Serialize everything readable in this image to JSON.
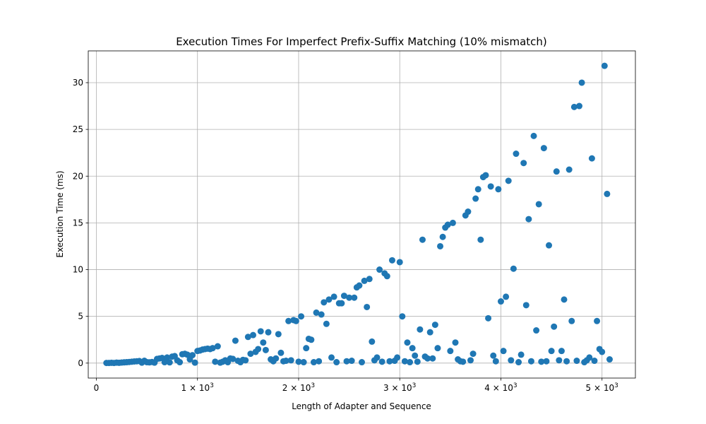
{
  "chart_data": {
    "type": "scatter",
    "title": "Execution Times For Imperfect Prefix-Suffix Matching (10% mismatch)",
    "xlabel": "Length of Adapter and Sequence",
    "ylabel": "Execution Time (ms)",
    "xlim": [
      -80,
      5330
    ],
    "ylim": [
      -1.6,
      33.4
    ],
    "grid": true,
    "marker_color": "#1f77b4",
    "x_ticks": [
      {
        "value": 0,
        "label": "0"
      },
      {
        "value": 1000,
        "label": "1 × 10",
        "exp": "3"
      },
      {
        "value": 2000,
        "label": "2 × 10",
        "exp": "3"
      },
      {
        "value": 3000,
        "label": "3 × 10",
        "exp": "3"
      },
      {
        "value": 4000,
        "label": "4 × 10",
        "exp": "3"
      },
      {
        "value": 5000,
        "label": "5 × 10",
        "exp": "3"
      }
    ],
    "y_ticks": [
      {
        "value": 0,
        "label": "0"
      },
      {
        "value": 5,
        "label": "5"
      },
      {
        "value": 10,
        "label": "10"
      },
      {
        "value": 15,
        "label": "15"
      },
      {
        "value": 20,
        "label": "20"
      },
      {
        "value": 25,
        "label": "25"
      },
      {
        "value": 30,
        "label": "30"
      }
    ],
    "points": [
      [
        100,
        0.02
      ],
      [
        125,
        0.02
      ],
      [
        150,
        0.03
      ],
      [
        175,
        0.02
      ],
      [
        200,
        0.05
      ],
      [
        225,
        0.03
      ],
      [
        250,
        0.06
      ],
      [
        275,
        0.08
      ],
      [
        300,
        0.1
      ],
      [
        325,
        0.12
      ],
      [
        350,
        0.15
      ],
      [
        375,
        0.18
      ],
      [
        400,
        0.2
      ],
      [
        425,
        0.22
      ],
      [
        450,
        0.05
      ],
      [
        475,
        0.25
      ],
      [
        500,
        0.1
      ],
      [
        525,
        0.08
      ],
      [
        550,
        0.12
      ],
      [
        575,
        0.05
      ],
      [
        600,
        0.45
      ],
      [
        625,
        0.5
      ],
      [
        650,
        0.55
      ],
      [
        675,
        0.1
      ],
      [
        700,
        0.6
      ],
      [
        725,
        0.08
      ],
      [
        750,
        0.7
      ],
      [
        775,
        0.75
      ],
      [
        800,
        0.3
      ],
      [
        825,
        0.1
      ],
      [
        850,
        0.95
      ],
      [
        875,
        1.0
      ],
      [
        900,
        0.9
      ],
      [
        925,
        0.4
      ],
      [
        950,
        0.85
      ],
      [
        975,
        0.05
      ],
      [
        1000,
        1.3
      ],
      [
        1025,
        1.35
      ],
      [
        1050,
        1.45
      ],
      [
        1075,
        1.5
      ],
      [
        1100,
        1.55
      ],
      [
        1125,
        1.5
      ],
      [
        1150,
        1.6
      ],
      [
        1175,
        0.15
      ],
      [
        1200,
        1.8
      ],
      [
        1225,
        0.05
      ],
      [
        1250,
        0.15
      ],
      [
        1275,
        0.3
      ],
      [
        1300,
        0.1
      ],
      [
        1325,
        0.5
      ],
      [
        1350,
        0.45
      ],
      [
        1375,
        2.4
      ],
      [
        1400,
        0.25
      ],
      [
        1425,
        0.1
      ],
      [
        1450,
        0.35
      ],
      [
        1475,
        0.3
      ],
      [
        1500,
        2.8
      ],
      [
        1525,
        1.0
      ],
      [
        1550,
        3.0
      ],
      [
        1575,
        1.2
      ],
      [
        1600,
        1.5
      ],
      [
        1625,
        3.4
      ],
      [
        1650,
        2.2
      ],
      [
        1675,
        1.4
      ],
      [
        1700,
        3.3
      ],
      [
        1725,
        0.4
      ],
      [
        1750,
        0.2
      ],
      [
        1775,
        0.5
      ],
      [
        1800,
        3.1
      ],
      [
        1825,
        1.1
      ],
      [
        1850,
        0.2
      ],
      [
        1875,
        0.25
      ],
      [
        1900,
        4.5
      ],
      [
        1925,
        0.3
      ],
      [
        1950,
        4.6
      ],
      [
        1975,
        4.5
      ],
      [
        2000,
        0.15
      ],
      [
        2025,
        5.0
      ],
      [
        2050,
        0.1
      ],
      [
        2075,
        1.6
      ],
      [
        2100,
        2.6
      ],
      [
        2125,
        2.5
      ],
      [
        2150,
        0.1
      ],
      [
        2175,
        5.4
      ],
      [
        2200,
        0.2
      ],
      [
        2225,
        5.2
      ],
      [
        2250,
        6.5
      ],
      [
        2275,
        4.2
      ],
      [
        2300,
        6.8
      ],
      [
        2325,
        0.6
      ],
      [
        2350,
        7.1
      ],
      [
        2375,
        0.1
      ],
      [
        2400,
        6.4
      ],
      [
        2425,
        6.4
      ],
      [
        2450,
        7.2
      ],
      [
        2475,
        0.2
      ],
      [
        2500,
        7.0
      ],
      [
        2525,
        0.25
      ],
      [
        2550,
        7.0
      ],
      [
        2575,
        8.1
      ],
      [
        2600,
        8.3
      ],
      [
        2625,
        0.1
      ],
      [
        2650,
        8.8
      ],
      [
        2675,
        6.0
      ],
      [
        2700,
        9.0
      ],
      [
        2725,
        2.3
      ],
      [
        2750,
        0.3
      ],
      [
        2775,
        0.6
      ],
      [
        2800,
        10.0
      ],
      [
        2825,
        0.15
      ],
      [
        2850,
        9.6
      ],
      [
        2875,
        9.3
      ],
      [
        2900,
        0.2
      ],
      [
        2925,
        11.0
      ],
      [
        2950,
        0.25
      ],
      [
        2975,
        0.6
      ],
      [
        3000,
        10.8
      ],
      [
        3025,
        5.0
      ],
      [
        3050,
        0.2
      ],
      [
        3075,
        2.2
      ],
      [
        3100,
        0.1
      ],
      [
        3125,
        1.6
      ],
      [
        3150,
        0.8
      ],
      [
        3175,
        0.15
      ],
      [
        3200,
        3.6
      ],
      [
        3225,
        13.2
      ],
      [
        3250,
        0.7
      ],
      [
        3275,
        0.5
      ],
      [
        3300,
        3.3
      ],
      [
        3325,
        0.5
      ],
      [
        3350,
        4.1
      ],
      [
        3375,
        1.6
      ],
      [
        3400,
        12.5
      ],
      [
        3425,
        13.5
      ],
      [
        3450,
        14.5
      ],
      [
        3475,
        14.8
      ],
      [
        3500,
        1.3
      ],
      [
        3525,
        15.0
      ],
      [
        3550,
        2.2
      ],
      [
        3575,
        0.4
      ],
      [
        3600,
        0.2
      ],
      [
        3625,
        0.15
      ],
      [
        3650,
        15.8
      ],
      [
        3675,
        16.2
      ],
      [
        3700,
        0.3
      ],
      [
        3725,
        1.0
      ],
      [
        3750,
        17.6
      ],
      [
        3775,
        18.6
      ],
      [
        3800,
        13.2
      ],
      [
        3825,
        19.9
      ],
      [
        3850,
        20.1
      ],
      [
        3875,
        4.8
      ],
      [
        3900,
        18.9
      ],
      [
        3925,
        0.8
      ],
      [
        3950,
        0.2
      ],
      [
        3975,
        18.6
      ],
      [
        4000,
        6.6
      ],
      [
        4025,
        1.3
      ],
      [
        4050,
        7.1
      ],
      [
        4075,
        19.5
      ],
      [
        4100,
        0.3
      ],
      [
        4125,
        10.1
      ],
      [
        4150,
        22.4
      ],
      [
        4175,
        0.1
      ],
      [
        4200,
        0.9
      ],
      [
        4225,
        21.4
      ],
      [
        4250,
        6.2
      ],
      [
        4275,
        15.4
      ],
      [
        4300,
        0.2
      ],
      [
        4325,
        24.3
      ],
      [
        4350,
        3.5
      ],
      [
        4375,
        17.0
      ],
      [
        4400,
        0.15
      ],
      [
        4425,
        23.0
      ],
      [
        4450,
        0.2
      ],
      [
        4475,
        12.6
      ],
      [
        4500,
        1.3
      ],
      [
        4525,
        3.9
      ],
      [
        4550,
        20.5
      ],
      [
        4575,
        0.3
      ],
      [
        4600,
        1.3
      ],
      [
        4625,
        6.8
      ],
      [
        4650,
        0.2
      ],
      [
        4675,
        20.7
      ],
      [
        4700,
        4.5
      ],
      [
        4725,
        27.4
      ],
      [
        4750,
        0.25
      ],
      [
        4775,
        27.5
      ],
      [
        4800,
        30.0
      ],
      [
        4825,
        0.1
      ],
      [
        4850,
        0.3
      ],
      [
        4875,
        0.6
      ],
      [
        4900,
        21.9
      ],
      [
        4925,
        0.25
      ],
      [
        4950,
        4.5
      ],
      [
        4975,
        1.5
      ],
      [
        5000,
        1.2
      ],
      [
        5025,
        31.8
      ],
      [
        5050,
        18.1
      ],
      [
        5075,
        0.4
      ]
    ]
  }
}
